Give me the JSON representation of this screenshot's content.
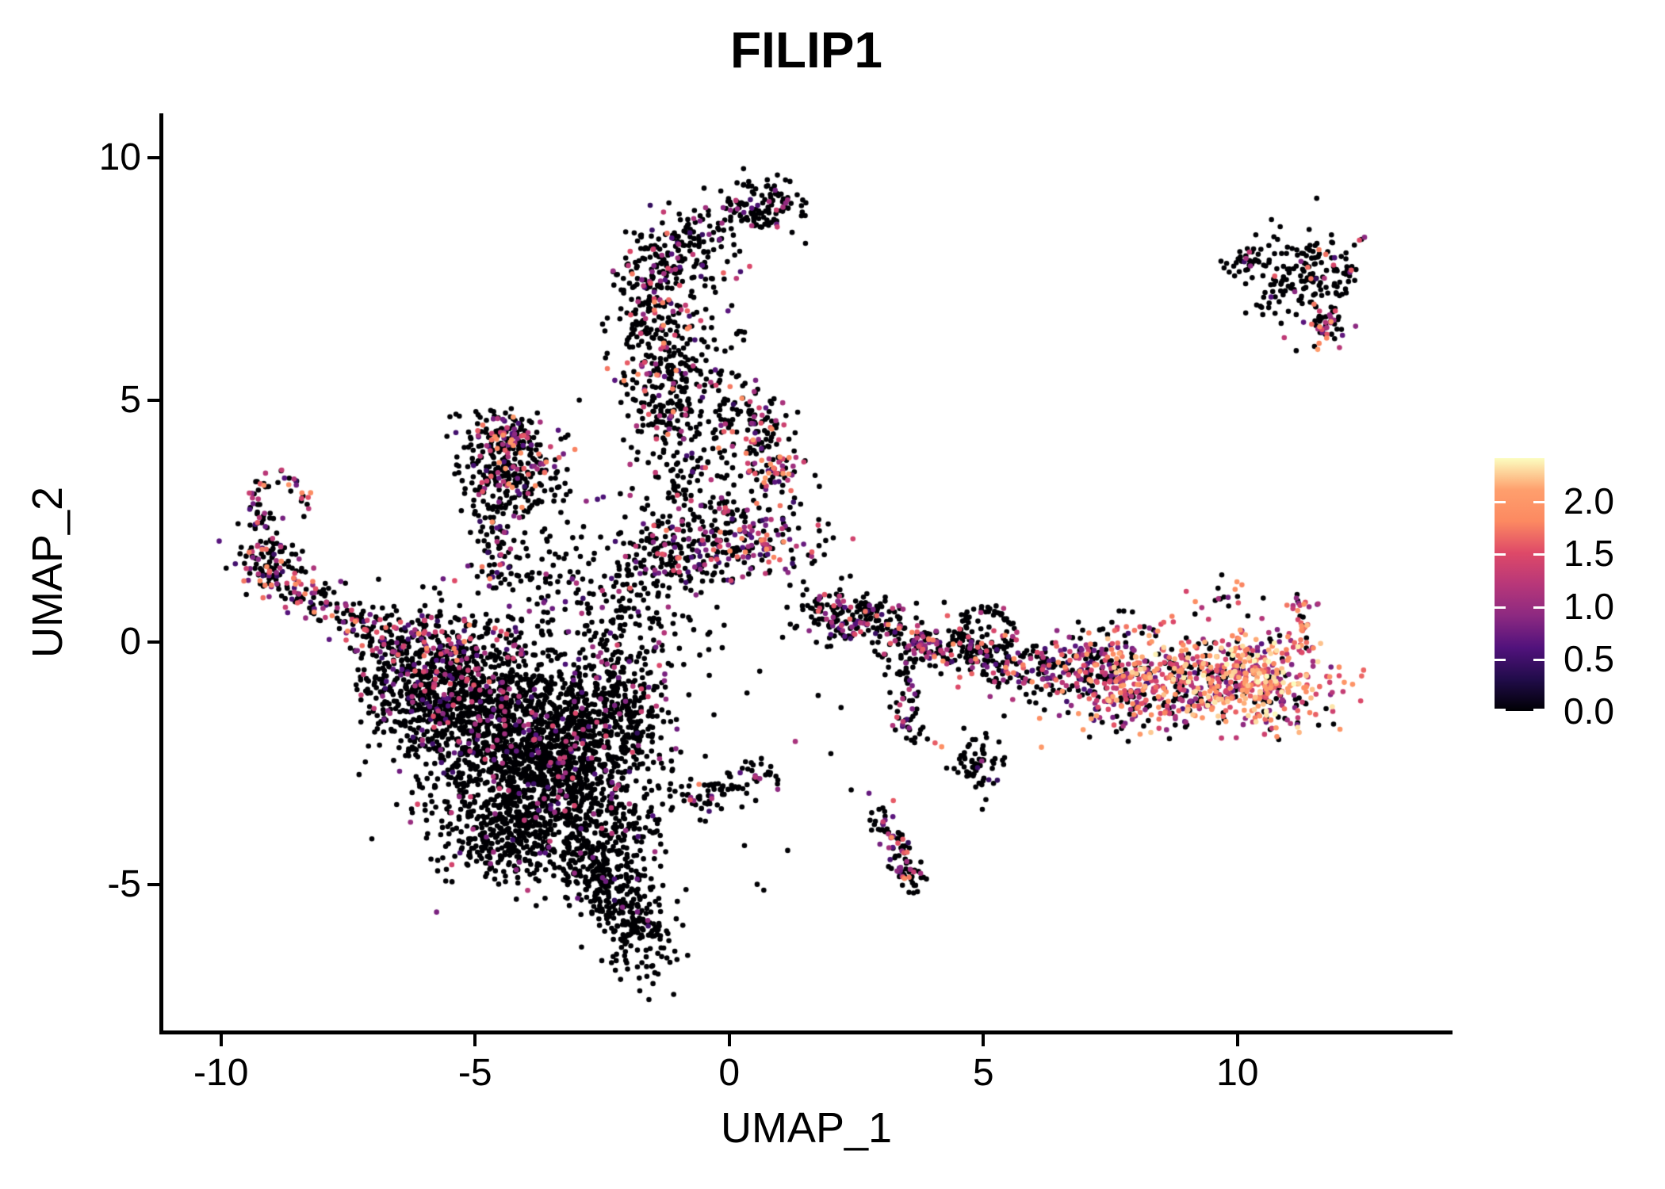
{
  "chart_data": {
    "type": "scatter",
    "title": "FILIP1",
    "xlabel": "UMAP_1",
    "ylabel": "UMAP_2",
    "xlim": [
      -11.15,
      14.2
    ],
    "ylim": [
      -8.05,
      10.92
    ],
    "grid": false,
    "x_ticks": [
      {
        "v": -10,
        "label": "-10"
      },
      {
        "v": -5,
        "label": "-5"
      },
      {
        "v": 0,
        "label": "0"
      },
      {
        "v": 5,
        "label": "5"
      },
      {
        "v": 10,
        "label": "10"
      }
    ],
    "y_ticks": [
      {
        "v": 10,
        "label": "10"
      },
      {
        "v": 5,
        "label": "5"
      },
      {
        "v": 0,
        "label": "0"
      },
      {
        "v": -5,
        "label": "-5"
      }
    ],
    "point_radius_px": 3.3,
    "colorbar": {
      "position": "right",
      "vmin": 0,
      "vmax": 2.41,
      "tick_labels": [
        {
          "v": 2.0,
          "label": "2.0"
        },
        {
          "v": 1.5,
          "label": "1.5"
        },
        {
          "v": 1.0,
          "label": "1.0"
        },
        {
          "v": 0.5,
          "label": "0.5"
        },
        {
          "v": 0.0,
          "label": "0.0"
        }
      ],
      "palette_name": "magma",
      "palette_stops": [
        [
          0,
          "#000004"
        ],
        [
          0.125,
          "#210C4A"
        ],
        [
          0.25,
          "#51127C"
        ],
        [
          0.375,
          "#8C2981"
        ],
        [
          0.5,
          "#B73779"
        ],
        [
          0.625,
          "#DE4968"
        ],
        [
          0.75,
          "#FC8961"
        ],
        [
          0.875,
          "#FE9F6D"
        ],
        [
          1,
          "#FCFDBF"
        ]
      ]
    },
    "seed": 20240601,
    "clusters": [
      {
        "name": "top-blob",
        "kind": "gauss",
        "cx": 0.62,
        "cy": 9.0,
        "sx": 0.42,
        "sy": 0.28,
        "n": 120,
        "p0": 0.9,
        "vmin": 0.4,
        "vmax": 1.4
      },
      {
        "name": "top-link",
        "kind": "gauss",
        "cx": -0.3,
        "cy": 8.6,
        "sx": 0.45,
        "sy": 0.28,
        "n": 22,
        "p0": 0.86,
        "vmin": 0.4,
        "vmax": 1.2
      },
      {
        "name": "spine-top",
        "kind": "gauss",
        "cx": -1.0,
        "cy": 8.05,
        "sx": 0.55,
        "sy": 0.42,
        "n": 135,
        "p0": 0.78,
        "vmin": 0.4,
        "vmax": 1.8
      },
      {
        "name": "spine-mid",
        "kind": "gauss",
        "cx": -1.45,
        "cy": 6.7,
        "sx": 0.4,
        "sy": 0.85,
        "n": 235,
        "p0": 0.76,
        "vmin": 0.4,
        "vmax": 1.9
      },
      {
        "name": "spine-low",
        "kind": "gauss",
        "cx": -1.1,
        "cy": 5.05,
        "sx": 0.55,
        "sy": 0.6,
        "n": 190,
        "p0": 0.8,
        "vmin": 0.4,
        "vmax": 1.9
      },
      {
        "name": "spine-right",
        "kind": "gauss",
        "cx": -0.3,
        "cy": 5.9,
        "sx": 0.5,
        "sy": 0.95,
        "n": 45,
        "p0": 0.86,
        "vmin": 0.4,
        "vmax": 1.5
      },
      {
        "name": "upper-right-blob",
        "kind": "gauss",
        "cx": 0.5,
        "cy": 4.45,
        "sx": 0.36,
        "sy": 0.38,
        "n": 90,
        "p0": 0.62,
        "vmin": 0.5,
        "vmax": 2.1
      },
      {
        "name": "lower-right-blob",
        "kind": "gauss",
        "cx": 0.82,
        "cy": 3.55,
        "sx": 0.32,
        "sy": 0.32,
        "n": 70,
        "p0": 0.56,
        "vmin": 0.5,
        "vmax": 2.1
      },
      {
        "name": "below-spine",
        "kind": "gauss",
        "cx": -0.8,
        "cy": 3.4,
        "sx": 0.6,
        "sy": 0.8,
        "n": 110,
        "p0": 0.84,
        "vmin": 0.4,
        "vmax": 1.6
      },
      {
        "name": "central-strip",
        "kind": "gauss",
        "cx": 0.2,
        "cy": 2.1,
        "sx": 0.82,
        "sy": 0.45,
        "n": 235,
        "p0": 0.56,
        "vmin": 0.4,
        "vmax": 1.9
      },
      {
        "name": "strip-left",
        "kind": "gauss",
        "cx": -1.3,
        "cy": 1.75,
        "sx": 0.55,
        "sy": 0.4,
        "n": 100,
        "p0": 0.7,
        "vmin": 0.4,
        "vmax": 1.7
      },
      {
        "name": "center-field",
        "kind": "gauss",
        "cx": -2.2,
        "cy": 0.8,
        "sx": 1.05,
        "sy": 0.78,
        "n": 170,
        "p0": 0.88,
        "vmin": 0.4,
        "vmax": 1.4
      },
      {
        "name": "triangle",
        "kind": "gauss",
        "cx": -4.3,
        "cy": 3.6,
        "sx": 0.5,
        "sy": 0.45,
        "n": 285,
        "p0": 0.74,
        "vmin": 0.4,
        "vmax": 1.9
      },
      {
        "name": "triangle-top",
        "kind": "gauss",
        "cx": -4.4,
        "cy": 4.28,
        "sx": 0.36,
        "sy": 0.2,
        "n": 80,
        "p0": 0.55,
        "vmin": 0.5,
        "vmax": 2.1
      },
      {
        "name": "triangle-chain",
        "kind": "line",
        "x1": -4.75,
        "y1": 2.95,
        "x2": -4.55,
        "y2": 1.3,
        "w": 0.16,
        "n": 55,
        "p0": 0.8,
        "vmin": 0.4,
        "vmax": 1.8
      },
      {
        "name": "triangle-spread",
        "kind": "gauss",
        "cx": -3.75,
        "cy": 1.6,
        "sx": 0.72,
        "sy": 0.55,
        "n": 70,
        "p0": 0.86,
        "vmin": 0.4,
        "vmax": 1.4
      },
      {
        "name": "hook-arc",
        "kind": "arc",
        "cx": -8.85,
        "cy": 2.92,
        "r": 0.48,
        "a1": -30,
        "a2": 235,
        "w": 0.09,
        "n": 50,
        "p0": 0.62,
        "vmin": 0.4,
        "vmax": 2.0
      },
      {
        "name": "hook-blob",
        "kind": "gauss",
        "cx": -9.05,
        "cy": 1.78,
        "sx": 0.34,
        "sy": 0.36,
        "n": 85,
        "p0": 0.68,
        "vmin": 0.4,
        "vmax": 1.9
      },
      {
        "name": "hook-arm",
        "kind": "line",
        "x1": -9.35,
        "y1": 1.45,
        "x2": -7.35,
        "y2": 0.4,
        "w": 0.22,
        "n": 120,
        "p0": 0.52,
        "vmin": 0.4,
        "vmax": 1.9
      },
      {
        "name": "arm-link",
        "kind": "line",
        "x1": -7.3,
        "y1": 0.35,
        "x2": -6.35,
        "y2": -0.1,
        "w": 0.3,
        "n": 70,
        "p0": 0.75,
        "vmin": 0.4,
        "vmax": 1.6
      },
      {
        "name": "mass-top-edge",
        "kind": "gauss",
        "cx": -5.8,
        "cy": 0.0,
        "sx": 0.78,
        "sy": 0.4,
        "n": 175,
        "p0": 0.64,
        "vmin": 0.4,
        "vmax": 1.9
      },
      {
        "name": "mass-a",
        "kind": "gauss",
        "cx": -5.3,
        "cy": -0.9,
        "sx": 0.8,
        "sy": 0.68,
        "n": 480,
        "p0": 0.82,
        "vmin": 0.4,
        "vmax": 1.6,
        "xmin": -7.35
      },
      {
        "name": "mass-b",
        "kind": "gauss",
        "cx": -4.4,
        "cy": -1.9,
        "sx": 1.0,
        "sy": 0.88,
        "n": 950,
        "p0": 0.93,
        "vmin": 0.4,
        "vmax": 1.5,
        "xmin": -7.35
      },
      {
        "name": "mass-c",
        "kind": "gauss",
        "cx": -3.35,
        "cy": -3.0,
        "sx": 0.85,
        "sy": 0.8,
        "n": 620,
        "p0": 0.94,
        "vmin": 0.4,
        "vmax": 1.4
      },
      {
        "name": "mass-d",
        "kind": "gauss",
        "cx": -2.7,
        "cy": -1.5,
        "sx": 0.75,
        "sy": 0.72,
        "n": 380,
        "p0": 0.91,
        "vmin": 0.4,
        "vmax": 1.5
      },
      {
        "name": "mass-bottom",
        "kind": "gauss",
        "cx": -4.4,
        "cy": -4.0,
        "sx": 0.62,
        "sy": 0.5,
        "n": 260,
        "p0": 0.96,
        "vmin": 0.4,
        "vmax": 1.2
      },
      {
        "name": "mass-bottom-right",
        "kind": "gauss",
        "cx": -2.5,
        "cy": -4.2,
        "sx": 0.6,
        "sy": 0.62,
        "n": 220,
        "p0": 0.95,
        "vmin": 0.4,
        "vmax": 1.2
      },
      {
        "name": "mass-left",
        "kind": "gauss",
        "cx": -6.4,
        "cy": -1.0,
        "sx": 0.45,
        "sy": 0.52,
        "n": 140,
        "p0": 0.86,
        "vmin": 0.4,
        "vmax": 1.5,
        "xmin": -7.35
      },
      {
        "name": "mass-right-edge",
        "kind": "gauss",
        "cx": -1.95,
        "cy": -1.0,
        "sx": 0.45,
        "sy": 0.98,
        "n": 140,
        "p0": 0.89,
        "vmin": 0.4,
        "vmax": 1.5
      },
      {
        "name": "tail-strand",
        "kind": "line",
        "x1": -2.9,
        "y1": -4.6,
        "x2": -2.05,
        "y2": -5.5,
        "w": 0.26,
        "n": 130,
        "p0": 0.94,
        "vmin": 0.4,
        "vmax": 1.2
      },
      {
        "name": "tail-blob",
        "kind": "gauss",
        "cx": -1.85,
        "cy": -5.95,
        "sx": 0.38,
        "sy": 0.5,
        "n": 150,
        "p0": 0.97,
        "vmin": 0.4,
        "vmax": 1.0
      },
      {
        "name": "tail-tip",
        "kind": "points",
        "pts": [
          [
            -1.62,
            -6.9,
            0
          ],
          [
            -1.5,
            -7.05,
            0
          ],
          [
            -1.76,
            -7.2,
            0
          ],
          [
            -1.58,
            -7.38,
            0
          ],
          [
            -2.0,
            -6.75,
            0
          ],
          [
            -1.4,
            -6.85,
            0
          ]
        ]
      },
      {
        "name": "mid-arm",
        "kind": "line",
        "x1": -0.85,
        "y1": -3.35,
        "x2": 0.9,
        "y2": -2.7,
        "w": 0.2,
        "n": 85,
        "p0": 0.8,
        "vmin": 0.4,
        "vmax": 1.8
      },
      {
        "name": "mid-arm-dots",
        "kind": "points",
        "pts": [
          [
            0.55,
            -5.0,
            0
          ],
          [
            0.68,
            -5.12,
            0
          ],
          [
            -1.3,
            -2.6,
            0
          ],
          [
            -1.05,
            -2.2,
            0.9
          ],
          [
            -1.6,
            -3.6,
            0
          ],
          [
            0.3,
            -4.2,
            0
          ]
        ]
      },
      {
        "name": "right-arm-1",
        "kind": "line",
        "x1": 1.55,
        "y1": 0.72,
        "x2": 3.3,
        "y2": 0.1,
        "w": 0.28,
        "n": 190,
        "p0": 0.7,
        "vmin": 0.4,
        "vmax": 1.7
      },
      {
        "name": "right-arm-knot",
        "kind": "gauss",
        "cx": 3.75,
        "cy": 0.0,
        "sx": 0.22,
        "sy": 0.2,
        "n": 50,
        "p0": 0.38,
        "vmin": 0.6,
        "vmax": 1.9
      },
      {
        "name": "right-arm-2",
        "kind": "line",
        "x1": 4.0,
        "y1": -0.05,
        "x2": 5.75,
        "y2": -0.4,
        "w": 0.3,
        "n": 180,
        "p0": 0.68,
        "vmin": 0.4,
        "vmax": 1.9
      },
      {
        "name": "right-arm-ring",
        "kind": "arc",
        "cx": 5.05,
        "cy": 0.22,
        "r": 0.44,
        "a1": 0,
        "a2": 360,
        "w": 0.08,
        "n": 55,
        "p0": 0.82,
        "vmin": 0.4,
        "vmax": 1.6
      },
      {
        "name": "arm-above-dots",
        "kind": "gauss",
        "cx": 2.6,
        "cy": 0.8,
        "sx": 0.55,
        "sy": 0.25,
        "n": 22,
        "p0": 0.82,
        "vmin": 0.4,
        "vmax": 1.4
      },
      {
        "name": "chain-down",
        "kind": "line",
        "x1": 3.35,
        "y1": -0.4,
        "x2": 3.65,
        "y2": -2.1,
        "w": 0.16,
        "n": 55,
        "p0": 0.82,
        "vmin": 0.4,
        "vmax": 1.6
      },
      {
        "name": "chain-accents",
        "kind": "points",
        "pts": [
          [
            3.3,
            -1.55,
            1.5
          ],
          [
            3.42,
            -1.64,
            1.3
          ],
          [
            4.05,
            -2.08,
            1.6
          ],
          [
            4.18,
            -2.16,
            1.9
          ],
          [
            3.9,
            -2.0,
            0
          ],
          [
            3.6,
            -0.9,
            0.8
          ]
        ]
      },
      {
        "name": "small-blob",
        "kind": "gauss",
        "cx": 4.85,
        "cy": -2.5,
        "sx": 0.26,
        "sy": 0.27,
        "n": 60,
        "p0": 0.92,
        "vmin": 0.4,
        "vmax": 1.3
      },
      {
        "name": "mid-strays",
        "kind": "points",
        "pts": [
          [
            1.3,
            -2.05,
            1.1
          ],
          [
            2.0,
            -2.3,
            0
          ],
          [
            2.4,
            -3.05,
            0
          ],
          [
            2.75,
            -3.12,
            0.7
          ],
          [
            1.15,
            -4.3,
            0
          ],
          [
            5.05,
            -3.25,
            0
          ],
          [
            4.98,
            -3.45,
            0
          ],
          [
            2.2,
            -1.35,
            0
          ],
          [
            1.75,
            -1.1,
            0
          ],
          [
            0.6,
            -0.6,
            0
          ],
          [
            1.05,
            0.1,
            0
          ],
          [
            -0.3,
            -1.5,
            0
          ],
          [
            0.35,
            -1.05,
            0
          ],
          [
            -0.1,
            0.35,
            0
          ]
        ]
      },
      {
        "name": "low-string",
        "kind": "line",
        "x1": 3.0,
        "y1": -3.6,
        "x2": 3.65,
        "y2": -5.05,
        "w": 0.14,
        "n": 95,
        "p0": 0.64,
        "vmin": 0.4,
        "vmax": 1.9
      },
      {
        "name": "right-cluster-left",
        "kind": "gauss",
        "cx": 6.7,
        "cy": -0.55,
        "sx": 0.68,
        "sy": 0.35,
        "n": 190,
        "p0": 0.52,
        "vmin": 0.4,
        "vmax": 1.9
      },
      {
        "name": "right-cluster-mid",
        "kind": "gauss",
        "cx": 8.3,
        "cy": -0.85,
        "sx": 0.85,
        "sy": 0.5,
        "n": 400,
        "p0": 0.3,
        "vmin": 0.5,
        "vmax": 2.3,
        "pow": 0.85
      },
      {
        "name": "right-cluster-right",
        "kind": "gauss",
        "cx": 10.2,
        "cy": -0.8,
        "sx": 0.85,
        "sy": 0.5,
        "n": 440,
        "p0": 0.16,
        "vmin": 0.6,
        "vmax": 2.41,
        "pow": 0.8
      },
      {
        "name": "right-tail-up",
        "kind": "line",
        "x1": 11.15,
        "y1": -0.25,
        "x2": 11.32,
        "y2": 0.95,
        "w": 0.13,
        "n": 40,
        "p0": 0.25,
        "vmin": 0.8,
        "vmax": 2.3
      },
      {
        "name": "right-top-dots",
        "kind": "gauss",
        "cx": 9.9,
        "cy": 1.0,
        "sx": 0.45,
        "sy": 0.28,
        "n": 20,
        "p0": 0.6,
        "vmin": 0.6,
        "vmax": 2.0
      },
      {
        "name": "right-mid-top-dots",
        "kind": "gauss",
        "cx": 8.0,
        "cy": 0.3,
        "sx": 0.6,
        "sy": 0.28,
        "n": 22,
        "p0": 0.6,
        "vmin": 0.5,
        "vmax": 1.8
      },
      {
        "name": "topright-chain",
        "kind": "line",
        "x1": 9.75,
        "y1": 7.78,
        "x2": 10.6,
        "y2": 7.95,
        "w": 0.12,
        "n": 32,
        "p0": 0.85,
        "vmin": 0.4,
        "vmax": 1.5
      },
      {
        "name": "topright-main",
        "kind": "gauss",
        "cx": 11.35,
        "cy": 7.5,
        "sx": 0.5,
        "sy": 0.5,
        "n": 175,
        "p0": 0.84,
        "vmin": 0.4,
        "vmax": 1.9
      },
      {
        "name": "topright-tip-low",
        "kind": "gauss",
        "cx": 11.75,
        "cy": 6.5,
        "sx": 0.2,
        "sy": 0.28,
        "n": 40,
        "p0": 0.48,
        "vmin": 0.6,
        "vmax": 2.2
      },
      {
        "name": "topright-tip-high",
        "kind": "points",
        "pts": [
          [
            12.4,
            8.3,
            1.5
          ],
          [
            12.5,
            8.36,
            0.9
          ],
          [
            12.3,
            8.2,
            0
          ]
        ]
      },
      {
        "name": "left-strays",
        "kind": "points",
        "pts": [
          [
            -6.9,
            1.3,
            0
          ],
          [
            -2.95,
            5.0,
            0
          ],
          [
            0.05,
            6.95,
            0
          ],
          [
            0.3,
            6.4,
            0
          ],
          [
            -0.1,
            7.5,
            0
          ],
          [
            0.5,
            8.6,
            0
          ],
          [
            0.92,
            8.85,
            0
          ]
        ]
      }
    ]
  }
}
